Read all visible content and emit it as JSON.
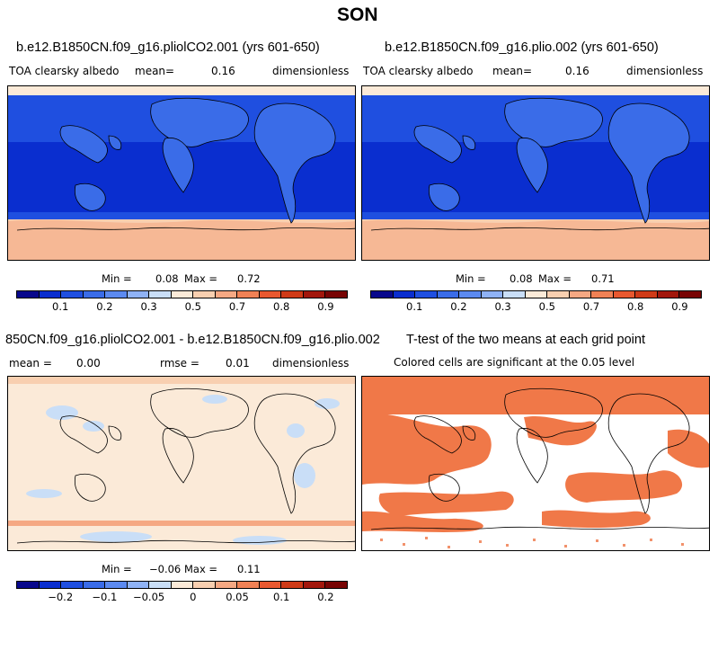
{
  "page": {
    "title": "SON"
  },
  "panels": [
    {
      "title": "b.e12.B1850CN.f09_g16.pliolCO2.001 (yrs 601-650)",
      "left": "TOA clearsky albedo",
      "mean_text": "mean=",
      "mean_value": "0.16",
      "units": "dimensionless",
      "minmax": {
        "min_label": "Min =",
        "min_value": "0.08",
        "max_label": "Max =",
        "max_value": "0.72"
      },
      "colorbar": {
        "colors": [
          "#08088c",
          "#0a2ecf",
          "#1f4fe0",
          "#3a6ce8",
          "#5c8af0",
          "#8fb2f5",
          "#c9def7",
          "#fbead8",
          "#f8cfb0",
          "#f5a883",
          "#f08155",
          "#e8582f",
          "#cf3a17",
          "#a2170c",
          "#780404"
        ],
        "ticks": [
          "0.1",
          "0.2",
          "0.3",
          "0.5",
          "0.7",
          "0.8",
          "0.9"
        ]
      }
    },
    {
      "title": "b.e12.B1850CN.f09_g16.plio.002 (yrs 601-650)",
      "left": "TOA clearsky albedo",
      "mean_text": "mean=",
      "mean_value": "0.16",
      "units": "dimensionless",
      "minmax": {
        "min_label": "Min =",
        "min_value": "0.08",
        "max_label": "Max =",
        "max_value": "0.71"
      },
      "colorbar": {
        "colors": [
          "#08088c",
          "#0a2ecf",
          "#1f4fe0",
          "#3a6ce8",
          "#5c8af0",
          "#8fb2f5",
          "#c9def7",
          "#fbead8",
          "#f8cfb0",
          "#f5a883",
          "#f08155",
          "#e8582f",
          "#cf3a17",
          "#a2170c",
          "#780404"
        ],
        "ticks": [
          "0.1",
          "0.2",
          "0.3",
          "0.5",
          "0.7",
          "0.8",
          "0.9"
        ]
      }
    },
    {
      "title": "850CN.f09_g16.pliolCO2.001 - b.e12.B1850CN.f09_g16.plio.002",
      "mean_text": "mean =",
      "mean_value": "0.00",
      "rmse_text": "rmse =",
      "rmse_value": "0.01",
      "units": "dimensionless",
      "minmax": {
        "min_label": "Min =",
        "min_value": "−0.06",
        "max_label": "Max =",
        "max_value": "0.11"
      },
      "colorbar": {
        "colors": [
          "#08088c",
          "#0a2ecf",
          "#1f4fe0",
          "#3a6ce8",
          "#5c8af0",
          "#8fb2f5",
          "#c9def7",
          "#fbead8",
          "#f8cfb0",
          "#f5a883",
          "#f08155",
          "#e8582f",
          "#cf3a17",
          "#a2170c",
          "#780404"
        ],
        "ticks": [
          "−0.2",
          "−0.1",
          "−0.05",
          "0",
          "0.05",
          "0.1",
          "0.2"
        ]
      }
    },
    {
      "title": "T-test of the two means at each grid point",
      "subtitle": "Colored cells are significant at the 0.05 level"
    }
  ],
  "colors": {
    "ocean_dark": "#0a2ecf",
    "ocean_mid": "#1f4fe0",
    "land_light": "#5c8af0",
    "ice": "#f8cfb0",
    "diff_bg": "#fbead8",
    "diff_blue": "#c9def7",
    "ttest": "#f07848"
  }
}
